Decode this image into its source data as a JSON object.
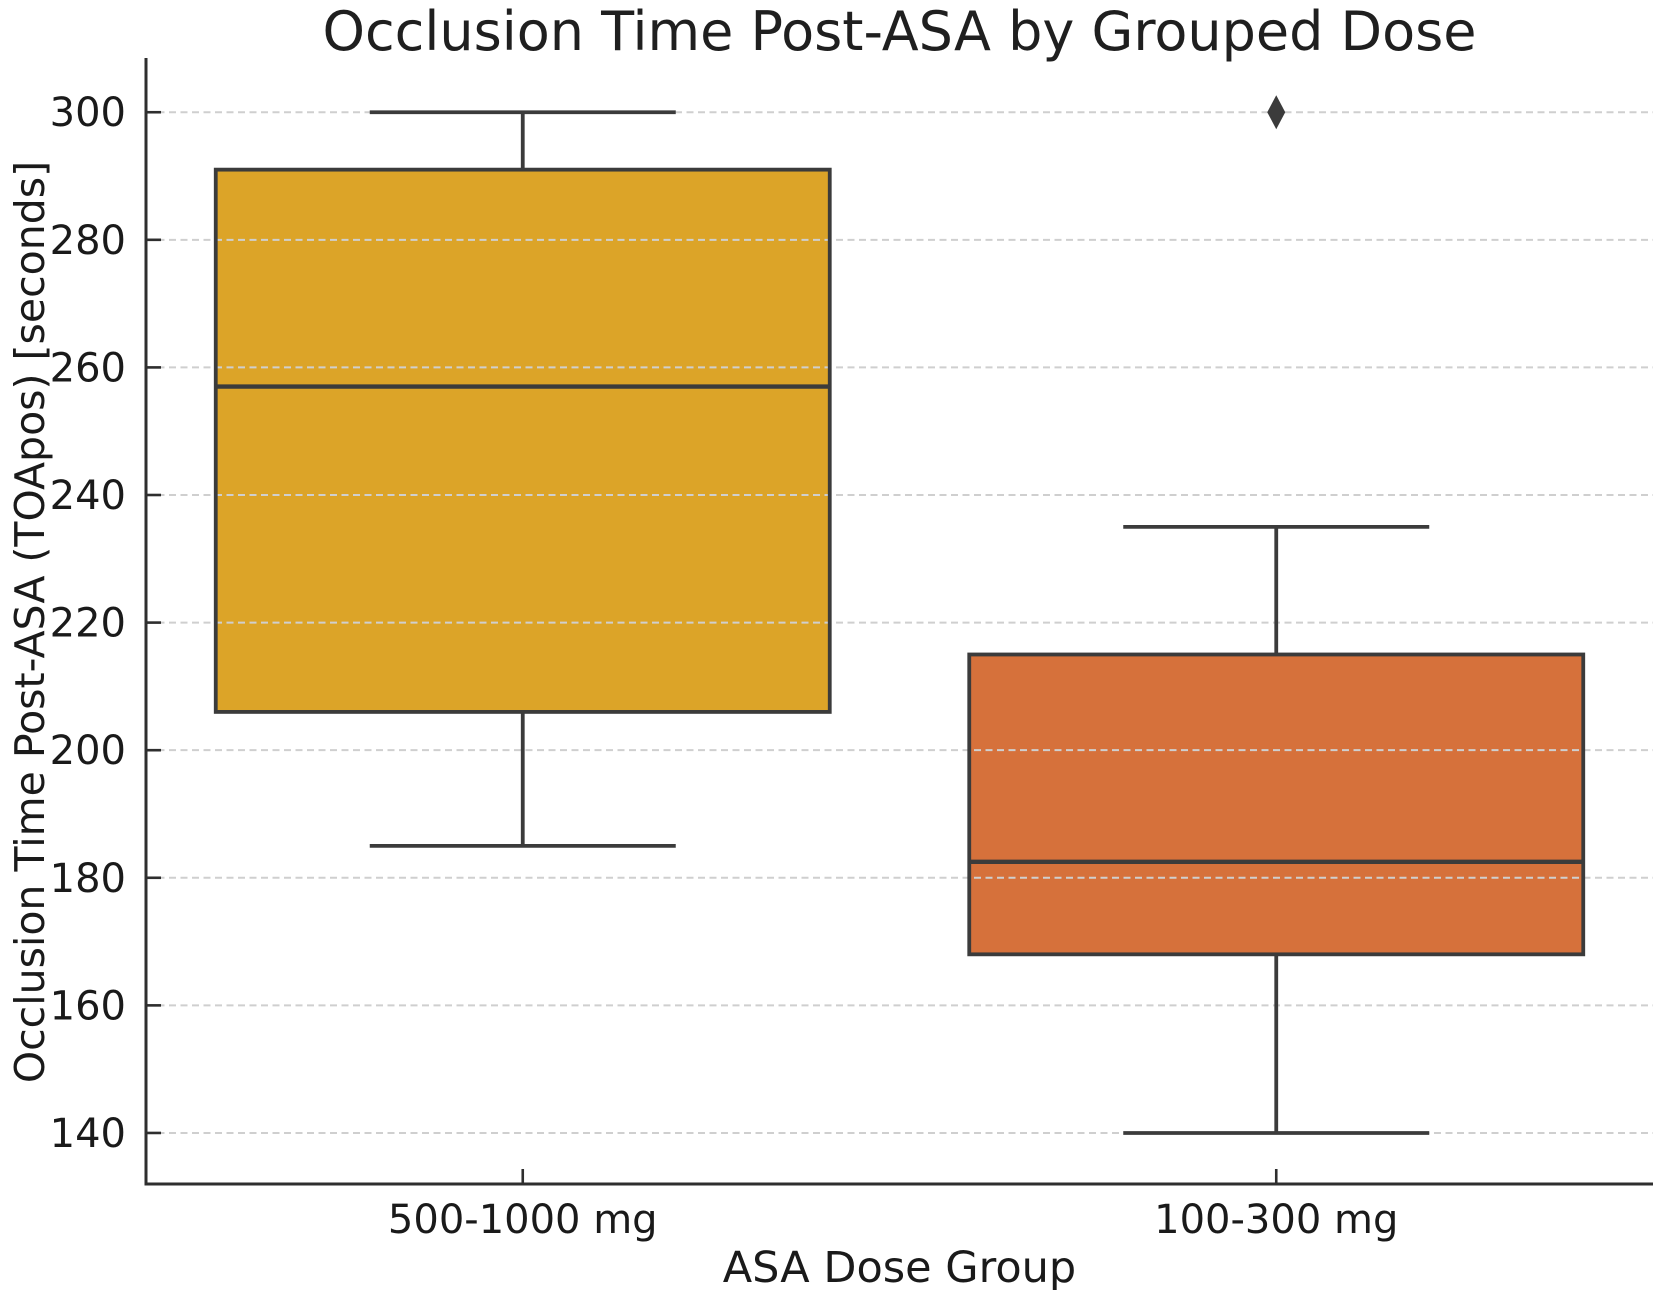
{
  "chart_data": {
    "type": "box",
    "title": "Occlusion Time Post-ASA by Grouped Dose",
    "xlabel": "ASA Dose Group",
    "ylabel": "Occlusion Time Post-ASA (TOApos) [seconds]",
    "categories": [
      "500-1000 mg",
      "100-300 mg"
    ],
    "yticks": [
      140,
      160,
      180,
      200,
      220,
      240,
      260,
      280,
      300
    ],
    "ylim": [
      132,
      308.5
    ],
    "grid": "horizontal-dashed",
    "legend_position": "none",
    "boxes": [
      {
        "category": "500-1000 mg",
        "whisker_low": 185,
        "q1": 206,
        "median": 257,
        "q3": 291,
        "whisker_high": 300,
        "outliers": [],
        "fill_color": "#dca428"
      },
      {
        "category": "100-300 mg",
        "whisker_low": 140,
        "q1": 168,
        "median": 182.5,
        "q3": 215,
        "whisker_high": 235,
        "outliers": [
          300
        ],
        "fill_color": "#d6713b"
      }
    ],
    "colors": {
      "box_line": "#3b3b3b",
      "spine": "#2e2e2e",
      "grid": "#cfcfcf",
      "text": "#1a1a1a",
      "outlier": "#3b3b3b"
    }
  }
}
